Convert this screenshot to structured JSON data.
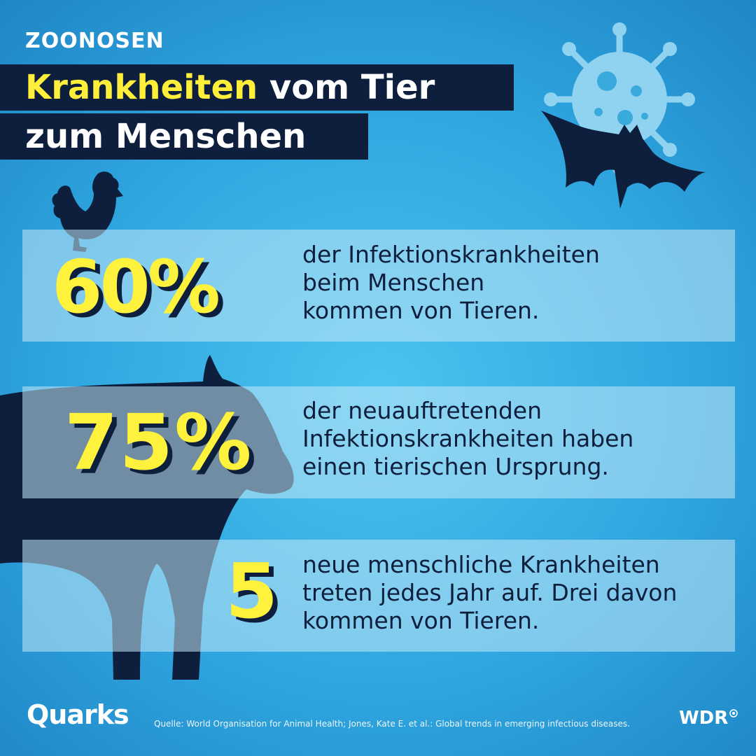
{
  "header": {
    "kicker": "ZOONOSEN",
    "title_highlight": "Krankheiten",
    "title_rest_line1": " vom Tier",
    "title_line2": "zum Menschen"
  },
  "stats": [
    {
      "value": "60%",
      "lines": [
        "der Infektionskrankheiten",
        "beim Menschen",
        "kommen von Tieren."
      ]
    },
    {
      "value": "75%",
      "lines": [
        "der neuauftretenden",
        "Infektionskrankheiten haben",
        "einen tierischen Ursprung."
      ]
    },
    {
      "value": "5",
      "lines": [
        "neue menschliche Krankheiten",
        "treten jedes Jahr auf. Drei davon",
        "kommen von Tieren."
      ]
    }
  ],
  "footer": {
    "logo": "Quarks",
    "source": "Quelle: World Organisation for Animal Health; Jones, Kate E. et al.: Global trends in emerging infectious diseases.",
    "broadcaster": "WDR"
  },
  "colors": {
    "background": "#2fa6df",
    "navy": "#0d1f3c",
    "yellow": "#fff23c",
    "virus": "#8fd3f0"
  },
  "icons": [
    "virus-icon",
    "bat-icon",
    "rooster-icon",
    "cow-icon"
  ]
}
